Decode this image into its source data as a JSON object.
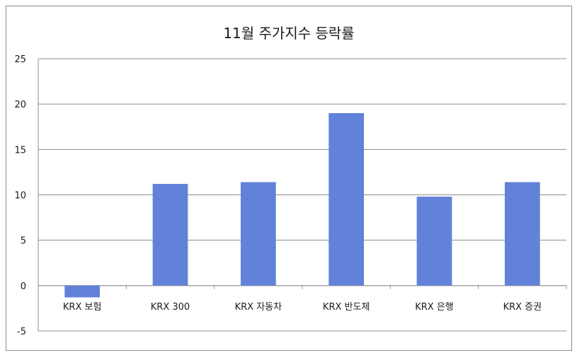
{
  "chart_data": {
    "type": "bar",
    "title": "11월 주가지수 등락률",
    "categories": [
      "KRX 보험",
      "KRX 300",
      "KRX 자동차",
      "KRX 반도체",
      "KRX 은행",
      "KRX 증권"
    ],
    "series": [
      {
        "values": [
          -1.3,
          11.2,
          11.4,
          19.0,
          9.8,
          11.4
        ]
      }
    ],
    "ylim": [
      -5,
      25
    ],
    "yticks": [
      25,
      20,
      15,
      10,
      5,
      0,
      -5
    ],
    "grid": true,
    "legend": "none",
    "xlabel": "",
    "ylabel": "",
    "colors": {
      "bar": "#6282d9",
      "grid": "#8c8c8c",
      "axis": "#8c8c8c"
    }
  }
}
